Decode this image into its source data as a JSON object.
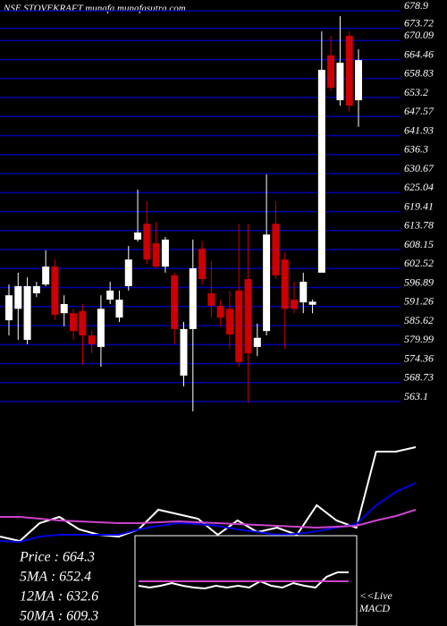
{
  "chart_data": [
    {
      "type": "candlestick",
      "title": "NSE STOVEKRAFT munafa.munafasutra.com",
      "up_color": "#ffffff",
      "down_color": "#cc0000",
      "grid_color": "#0000aa",
      "grid": true,
      "ylim": [
        560.2,
        682.1
      ],
      "yticks": [
        678.9,
        673.72,
        670.09,
        664.46,
        658.83,
        653.2,
        647.57,
        641.93,
        636.3,
        630.67,
        625.04,
        619.41,
        613.78,
        608.15,
        602.52,
        596.89,
        591.26,
        585.62,
        579.99,
        574.36,
        568.73,
        563.1
      ],
      "open": [
        587.2,
        590.6,
        581.4,
        595.2,
        597.8,
        603.1,
        589.3,
        589.3,
        589.9,
        582.7,
        579.3,
        593.3,
        588.0,
        597.3,
        611.1,
        615.8,
        610.0,
        603.1,
        600.5,
        570.8,
        584.6,
        608.4,
        595.2,
        591.5,
        590.6,
        596.0,
        599.4,
        579.3,
        584.0,
        615.8,
        605.2,
        593.3,
        592.5,
        591.8,
        601.3,
        665.7,
        652.4,
        671.5,
        652.4
      ],
      "high": [
        597.8,
        601.3,
        599.9,
        598.6,
        607.9,
        605.2,
        594.6,
        590.6,
        592.0,
        584.0,
        594.6,
        598.6,
        596.0,
        609.2,
        625.9,
        622.5,
        616.4,
        611.9,
        601.3,
        586.7,
        611.1,
        610.5,
        604.7,
        593.3,
        596.0,
        615.8,
        615.8,
        586.2,
        630.4,
        622.5,
        607.3,
        598.6,
        601.3,
        593.3,
        672.8,
        671.5,
        677.3,
        672.8,
        667.5
      ],
      "low": [
        582.7,
        581.4,
        580.1,
        594.1,
        597.3,
        587.2,
        585.4,
        581.4,
        574.0,
        577.4,
        573.4,
        592.0,
        586.7,
        596.0,
        610.5,
        603.9,
        602.6,
        601.3,
        580.1,
        567.6,
        560.2,
        597.8,
        588.0,
        585.4,
        578.7,
        573.4,
        562.8,
        576.6,
        582.7,
        599.4,
        578.7,
        589.3,
        589.3,
        589.3,
        601.3,
        655.1,
        650.8,
        649.0,
        644.5
      ],
      "close": [
        594.6,
        597.3,
        597.3,
        597.3,
        603.1,
        588.8,
        592.0,
        584.0,
        582.7,
        580.1,
        590.6,
        596.0,
        593.3,
        605.2,
        613.2,
        605.2,
        603.1,
        611.1,
        584.6,
        584.6,
        602.6,
        599.4,
        591.5,
        588.0,
        583.0,
        574.8,
        577.4,
        582.0,
        612.6,
        600.5,
        590.6,
        590.6,
        598.6,
        592.7,
        661.4,
        656.1,
        663.5,
        650.8,
        664.3
      ]
    },
    {
      "type": "line",
      "ylim": [
        0,
        120
      ],
      "series": [
        {
          "color": "#ffffff",
          "values": [
            10,
            5,
            25,
            32,
            18,
            12,
            10,
            18,
            40,
            35,
            30,
            12,
            28,
            15,
            20,
            12,
            45,
            28,
            20,
            105,
            105,
            110
          ]
        },
        {
          "color": "#0000dd",
          "values": [
            5,
            4,
            10,
            12,
            12,
            12,
            12,
            18,
            22,
            25,
            24,
            22,
            18,
            15,
            12,
            13,
            16,
            20,
            24,
            45,
            60,
            70
          ]
        },
        {
          "color": "#cc44cc",
          "values": [
            32,
            32,
            30,
            28,
            27,
            26,
            25,
            25,
            26,
            27,
            26,
            25,
            24,
            23,
            22,
            21,
            20,
            21,
            22,
            28,
            33,
            40
          ]
        }
      ]
    },
    {
      "type": "macd",
      "ylim": [
        -20,
        40
      ],
      "series": [
        {
          "color": "#ffffff",
          "values": [
            5,
            3,
            5,
            8,
            5,
            3,
            2,
            5,
            3,
            5,
            3,
            10,
            5,
            3,
            8,
            5,
            3,
            15,
            20,
            20
          ]
        },
        {
          "color": "#cc44cc",
          "values": [
            10,
            10,
            10,
            10,
            10,
            10,
            10,
            10,
            10,
            10,
            10,
            10,
            10,
            10,
            10,
            10,
            10,
            10,
            10,
            10
          ]
        }
      ],
      "label": [
        "<<Live",
        "MACD"
      ]
    }
  ],
  "info": [
    "Price : 664.3",
    "5MA : 652.4",
    "12MA : 632.6",
    "50MA : 609.3"
  ]
}
